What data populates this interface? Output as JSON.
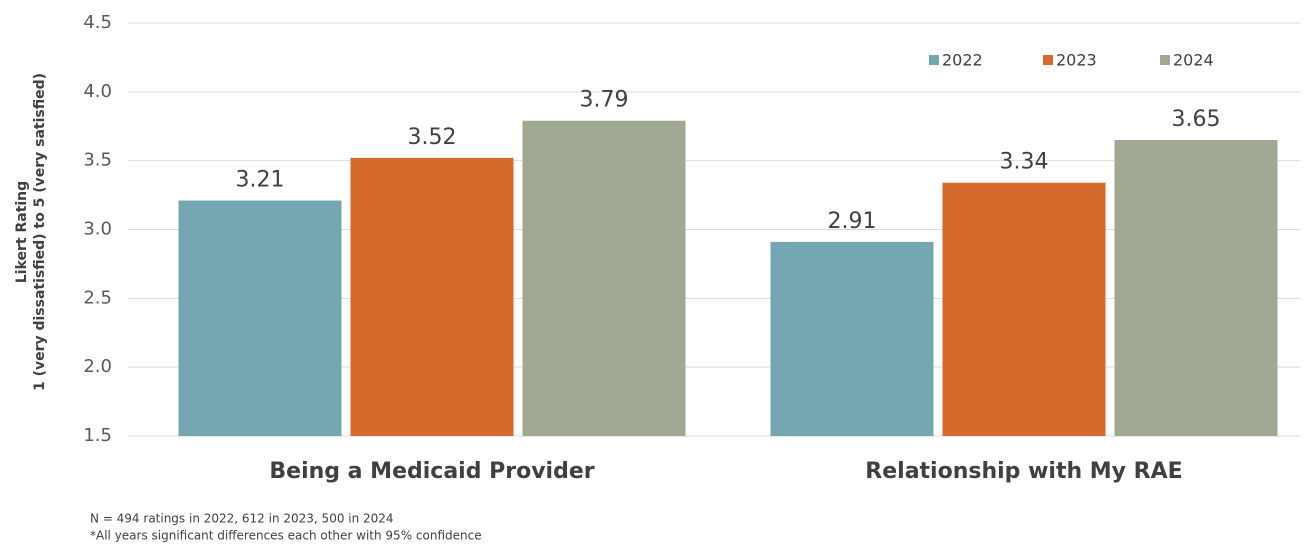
{
  "chart_data": {
    "type": "bar",
    "ylabel": [
      "Likert Rating",
      "1 (very dissatisfied) to 5 (very satisfied)"
    ],
    "categories": [
      "Being a Medicaid Provider",
      "Relationship with My RAE"
    ],
    "series": [
      {
        "name": "2022",
        "color": "#74a6b1",
        "values": [
          3.21,
          2.91
        ]
      },
      {
        "name": "2023",
        "color": "#d66a2c",
        "values": [
          3.52,
          3.34
        ]
      },
      {
        "name": "2024",
        "color": "#9fa891",
        "values": [
          3.79,
          3.65
        ]
      }
    ],
    "ylim": [
      1.5,
      4.5
    ],
    "yticks": [
      1.5,
      {
        "value": 2,
        "label": "2.0"
      },
      2.5,
      {
        "value": 3,
        "label": "3.0"
      },
      3.5,
      {
        "value": 4,
        "label": "4.0"
      },
      4.5
    ],
    "grid": true,
    "legend": "top-right",
    "notes": [
      "N = 494 ratings in 2022, 612 in 2023, 500 in 2024",
      "*All years significant differences each other with 95% confidence"
    ]
  }
}
